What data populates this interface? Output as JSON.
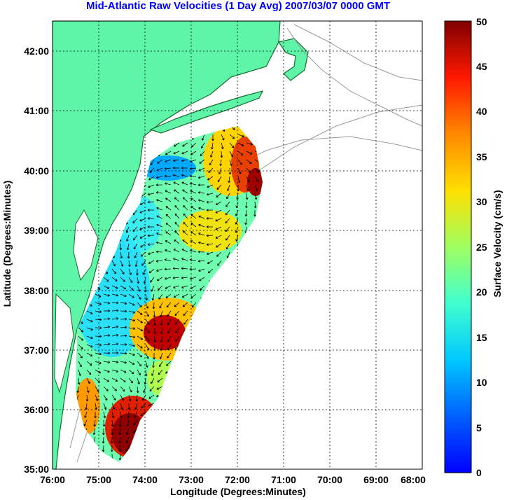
{
  "title": "Mid-Atlantic Raw Velocities (1 Day Avg) 2007/03/07 0000 GMT",
  "xlabel": "Longitude (Degrees:Minutes)",
  "ylabel": "Latitude (Degrees:Minutes)",
  "colorbar_label": "Surface Velocity (cm/s)",
  "x_ticks": [
    "76:00",
    "75:00",
    "74:00",
    "73:00",
    "72:00",
    "71:00",
    "70:00",
    "69:00",
    "68:00"
  ],
  "y_ticks": [
    "35:00",
    "36:00",
    "37:00",
    "38:00",
    "39:00",
    "40:00",
    "41:00",
    "42:00"
  ],
  "colorbar_ticks": [
    "0",
    "5",
    "10",
    "15",
    "20",
    "25",
    "30",
    "35",
    "40",
    "45",
    "50"
  ],
  "colors": {
    "land": "#5ef5a8",
    "title": "#0000ff",
    "grid": "#000000",
    "coast": "#1a6b2e"
  },
  "map": {
    "lon_range": [
      -76,
      -68
    ],
    "lat_range": [
      35,
      42.5
    ],
    "colorbar_range": [
      0,
      50
    ],
    "colormap": "jet",
    "grid": true
  }
}
